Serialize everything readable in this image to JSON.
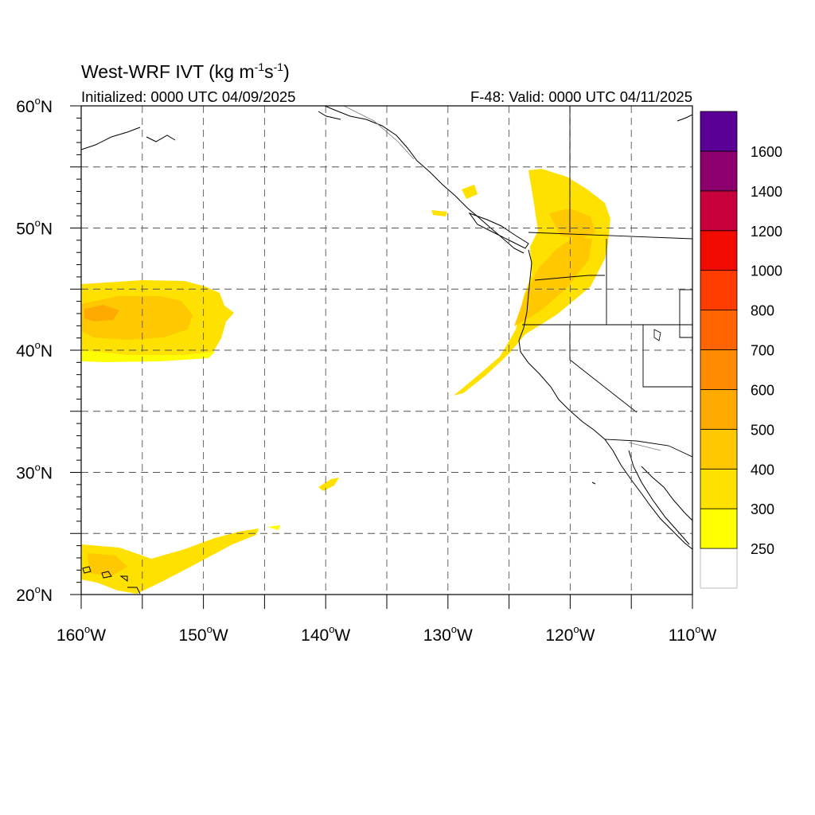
{
  "map": {
    "title_main": "West-WRF IVT (kg m",
    "title_exp1": "-1",
    "title_mid": "s",
    "title_exp2": "-1",
    "title_end": ")",
    "init_text": "Initialized: 0000 UTC 04/09/2025",
    "valid_text": "F-48: Valid: 0000 UTC 04/11/2025",
    "extent": {
      "lon": [
        -160,
        -110
      ],
      "lat": [
        20,
        60
      ]
    },
    "lat_ticks": [
      {
        "value": 60,
        "label": "60",
        "hemi": "N"
      },
      {
        "value": 50,
        "label": "50",
        "hemi": "N"
      },
      {
        "value": 40,
        "label": "40",
        "hemi": "N"
      },
      {
        "value": 30,
        "label": "30",
        "hemi": "N"
      },
      {
        "value": 20,
        "label": "20",
        "hemi": "N"
      }
    ],
    "lon_ticks": [
      {
        "value": -160,
        "label": "160",
        "hemi": "W"
      },
      {
        "value": -150,
        "label": "150",
        "hemi": "W"
      },
      {
        "value": -140,
        "label": "140",
        "hemi": "W"
      },
      {
        "value": -130,
        "label": "130",
        "hemi": "W"
      },
      {
        "value": -120,
        "label": "120",
        "hemi": "W"
      },
      {
        "value": -110,
        "label": "110",
        "hemi": "W"
      }
    ],
    "degree_symbol": "o"
  },
  "colorbar": {
    "levels": [
      {
        "label": "",
        "color": "#ffffff"
      },
      {
        "label": "250",
        "color": "#ffff00"
      },
      {
        "label": "300",
        "color": "#ffe100"
      },
      {
        "label": "400",
        "color": "#ffc800"
      },
      {
        "label": "500",
        "color": "#ffaa00"
      },
      {
        "label": "600",
        "color": "#ff8c00"
      },
      {
        "label": "700",
        "color": "#ff6400"
      },
      {
        "label": "800",
        "color": "#ff3c00"
      },
      {
        "label": "1000",
        "color": "#f00a00"
      },
      {
        "label": "1200",
        "color": "#c8003c"
      },
      {
        "label": "1400",
        "color": "#8c006e"
      },
      {
        "label": "1600",
        "color": "#5a0096"
      }
    ]
  }
}
